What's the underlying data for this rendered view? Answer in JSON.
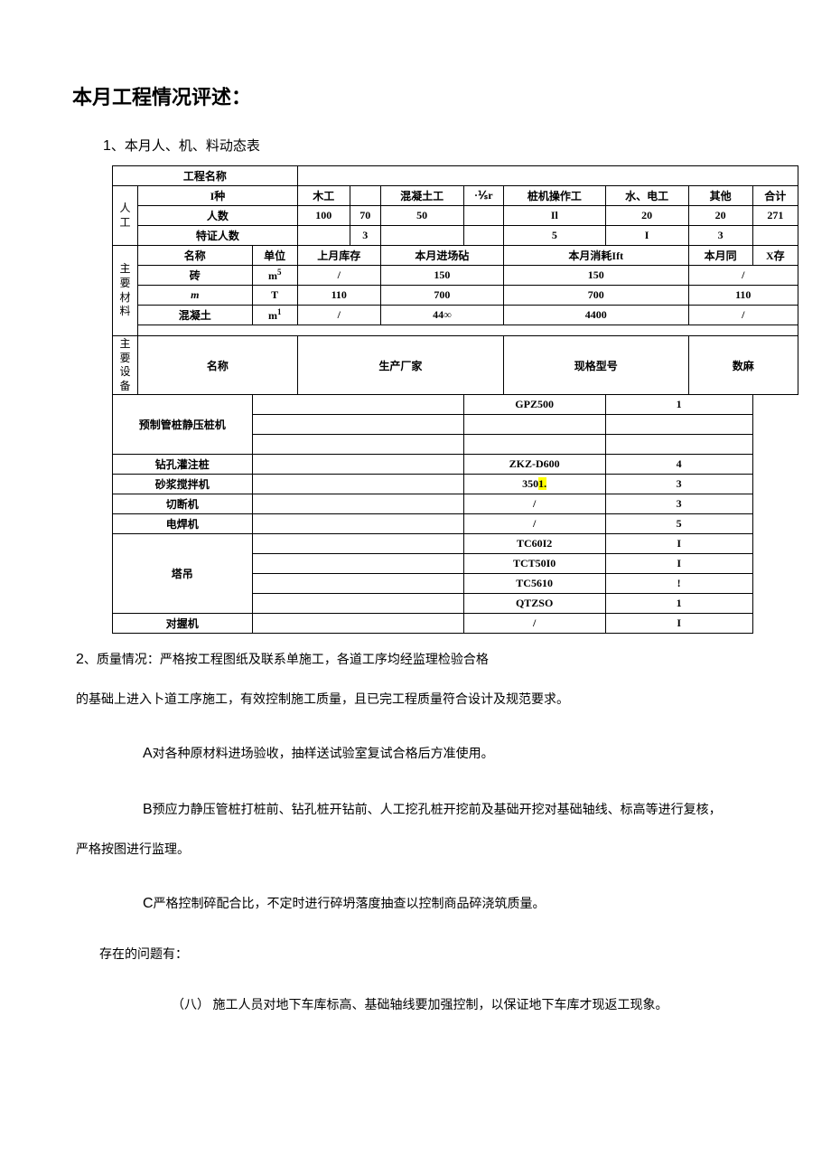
{
  "title": "本月工程情况评述：",
  "section1_label_num": "1",
  "section1_label_text": "、本月人、机、料动态表",
  "table": {
    "row_project_name": "工程名称",
    "labor": {
      "header": "人工",
      "row_type": {
        "label": "I种",
        "cells": [
          "木工",
          "",
          "混凝土工",
          "·⅟ₛr",
          "桩机操作工",
          "水、电工",
          "其他",
          "合计"
        ]
      },
      "row_count": {
        "label": "人数",
        "cells": [
          "100",
          "70",
          "50",
          "",
          "Il",
          "20",
          "20",
          "271"
        ]
      },
      "row_cert": {
        "label": "特证人数",
        "cells": [
          "",
          "3",
          "",
          "",
          "5",
          "I",
          "3",
          ""
        ]
      }
    },
    "materials": {
      "header": "主要材料",
      "row_hdr": [
        "名称",
        "单位",
        "上月库存",
        "本月进场砧",
        "本月消耗Ift",
        "本月同",
        "X存"
      ],
      "rows": [
        {
          "name": "砖",
          "unit": "m",
          "unit_sup": "5",
          "stock": "/",
          "in": "150",
          "use": "150",
          "remain": "/"
        },
        {
          "name": "m",
          "name_style": "italic",
          "unit": "T",
          "stock": "110",
          "in": "700",
          "use": "700",
          "remain": "110"
        },
        {
          "name": "混凝土",
          "unit": "m",
          "unit_sup": "1",
          "stock": "/",
          "in": "44∞",
          "use": "4400",
          "remain": "/"
        }
      ]
    },
    "equipment": {
      "header": "主要设备",
      "row_hdr": [
        "名称",
        "生产厂家",
        "现格型号",
        "数麻"
      ],
      "rows": [
        {
          "name": "预制管桩静压桩机",
          "span": 3,
          "sub": [
            {
              "m": "GPZ500",
              "q": "1"
            },
            {
              "m": "",
              "q": ""
            },
            {
              "m": "",
              "q": ""
            }
          ]
        },
        {
          "name": "钻孔灌注桩",
          "span": 1,
          "sub": [
            {
              "m": "ZKZ-D600",
              "q": "4"
            }
          ]
        },
        {
          "name": "砂浆搅拌机",
          "span": 1,
          "sub": [
            {
              "m": "350",
              "m_hl": "1.",
              "q": "3"
            }
          ]
        },
        {
          "name": "切断机",
          "span": 1,
          "sub": [
            {
              "m": "/",
              "q": "3"
            }
          ]
        },
        {
          "name": "电焊机",
          "span": 1,
          "sub": [
            {
              "m": "/",
              "q": "5"
            }
          ]
        },
        {
          "name": "塔吊",
          "span": 4,
          "sub": [
            {
              "m": "TC60I2",
              "q": "I"
            },
            {
              "m": "TCT50I0",
              "q": "I"
            },
            {
              "m": "TC5610",
              "q": "!"
            },
            {
              "m": "QTZSO",
              "q": "1"
            }
          ]
        },
        {
          "name": "对握机",
          "span": 1,
          "sub": [
            {
              "m": "/",
              "q": "I"
            }
          ]
        }
      ]
    }
  },
  "paras": {
    "p2a_num": "2",
    "p2a": "、质量情况：严格按工程图纸及联系单施工，各道工序均经监理检验合格",
    "p2b": "的基础上进入卜道工序施工，有效控制施工质量，且已完工程质量符合设计及规范要求。",
    "pA_lead": "A",
    "pA": "对各种原材料进场验收，抽样送试验室复试合格后方准使用。",
    "pB_lead": "B",
    "pB": "预应力静压管桩打桩前、钻孔桩开钻前、人工挖孔桩开挖前及基础开挖对基础轴线、标高等进行复核，",
    "pB2": "严格按图进行监理。",
    "pC_lead": "C",
    "pC": "严格控制碎配合比，不定时进行碎坍落度抽查以控制商品碎浇筑质量。",
    "pIssue": "存在的问题有：",
    "p8_lead": "（八）",
    "p8": " 施工人员对地下车库标高、基础轴线要加强控制，以保证地下车库才现返工现象。"
  }
}
